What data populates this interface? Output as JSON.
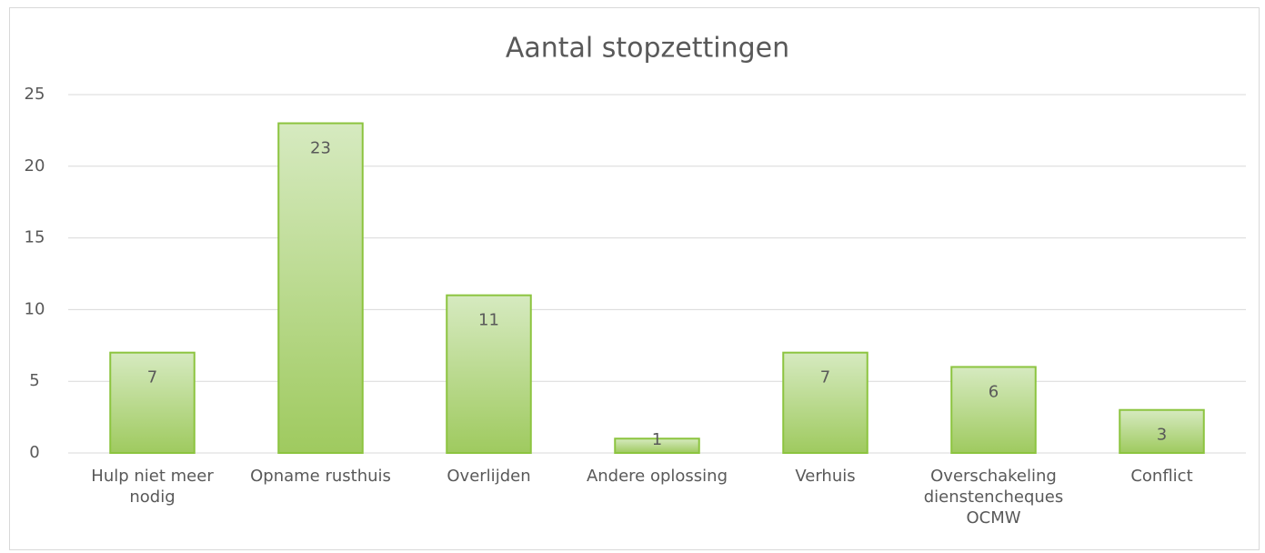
{
  "chart_data": {
    "type": "bar",
    "title": "Aantal stopzettingen",
    "categories": [
      "Hulp niet meer nodig",
      "Opname rusthuis",
      "Overlijden",
      "Andere oplossing",
      "Verhuis",
      "Overschakeling dienstencheques OCMW",
      "Conflict"
    ],
    "values": [
      7,
      23,
      11,
      1,
      7,
      6,
      3
    ],
    "color": "#8cc43f",
    "ylim": [
      0,
      25
    ],
    "yticks": [
      0,
      5,
      10,
      15,
      20,
      25
    ],
    "grid": true
  }
}
